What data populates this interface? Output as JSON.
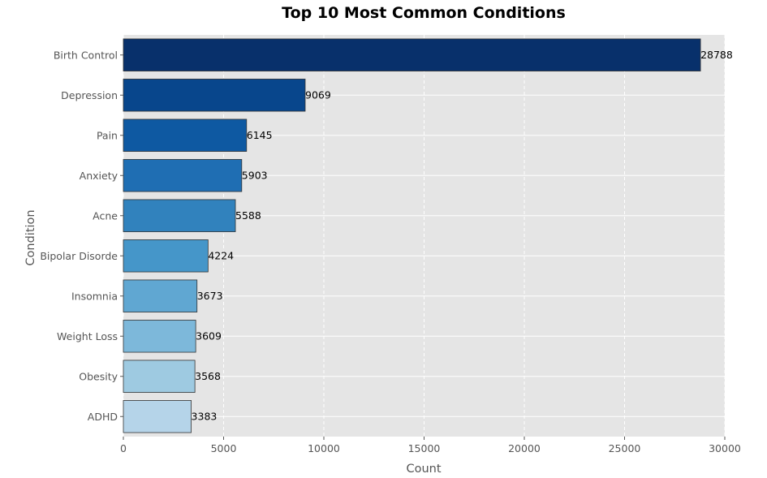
{
  "chart_data": {
    "type": "bar",
    "orientation": "horizontal",
    "title": "Top 10 Most Common Conditions",
    "xlabel": "Count",
    "ylabel": "Condition",
    "categories": [
      "Birth Control",
      "Depression",
      "Pain",
      "Anxiety",
      "Acne",
      "Bipolar Disorde",
      "Insomnia",
      "Weight Loss",
      "Obesity",
      "ADHD"
    ],
    "values": [
      28788,
      9069,
      6145,
      5903,
      5588,
      4224,
      3673,
      3609,
      3568,
      3383
    ],
    "data_labels": [
      "28788",
      "9069",
      "6145",
      "5903",
      "5588",
      "4224",
      "3673",
      "3609",
      "3568",
      "3383"
    ],
    "xlim": [
      0,
      30000
    ],
    "xticks": [
      0,
      5000,
      10000,
      15000,
      20000,
      25000,
      30000
    ],
    "xtick_labels": [
      "0",
      "5000",
      "10000",
      "15000",
      "20000",
      "25000",
      "30000"
    ],
    "grid": true,
    "colors": [
      "#08306b",
      "#08468c",
      "#0e59a2",
      "#1f6eb3",
      "#3182bd",
      "#4596c9",
      "#60a7d2",
      "#7db8da",
      "#9ecae1",
      "#b5d4e9"
    ],
    "background": "#e5e5e5",
    "bar_edge_color": "#333333"
  }
}
